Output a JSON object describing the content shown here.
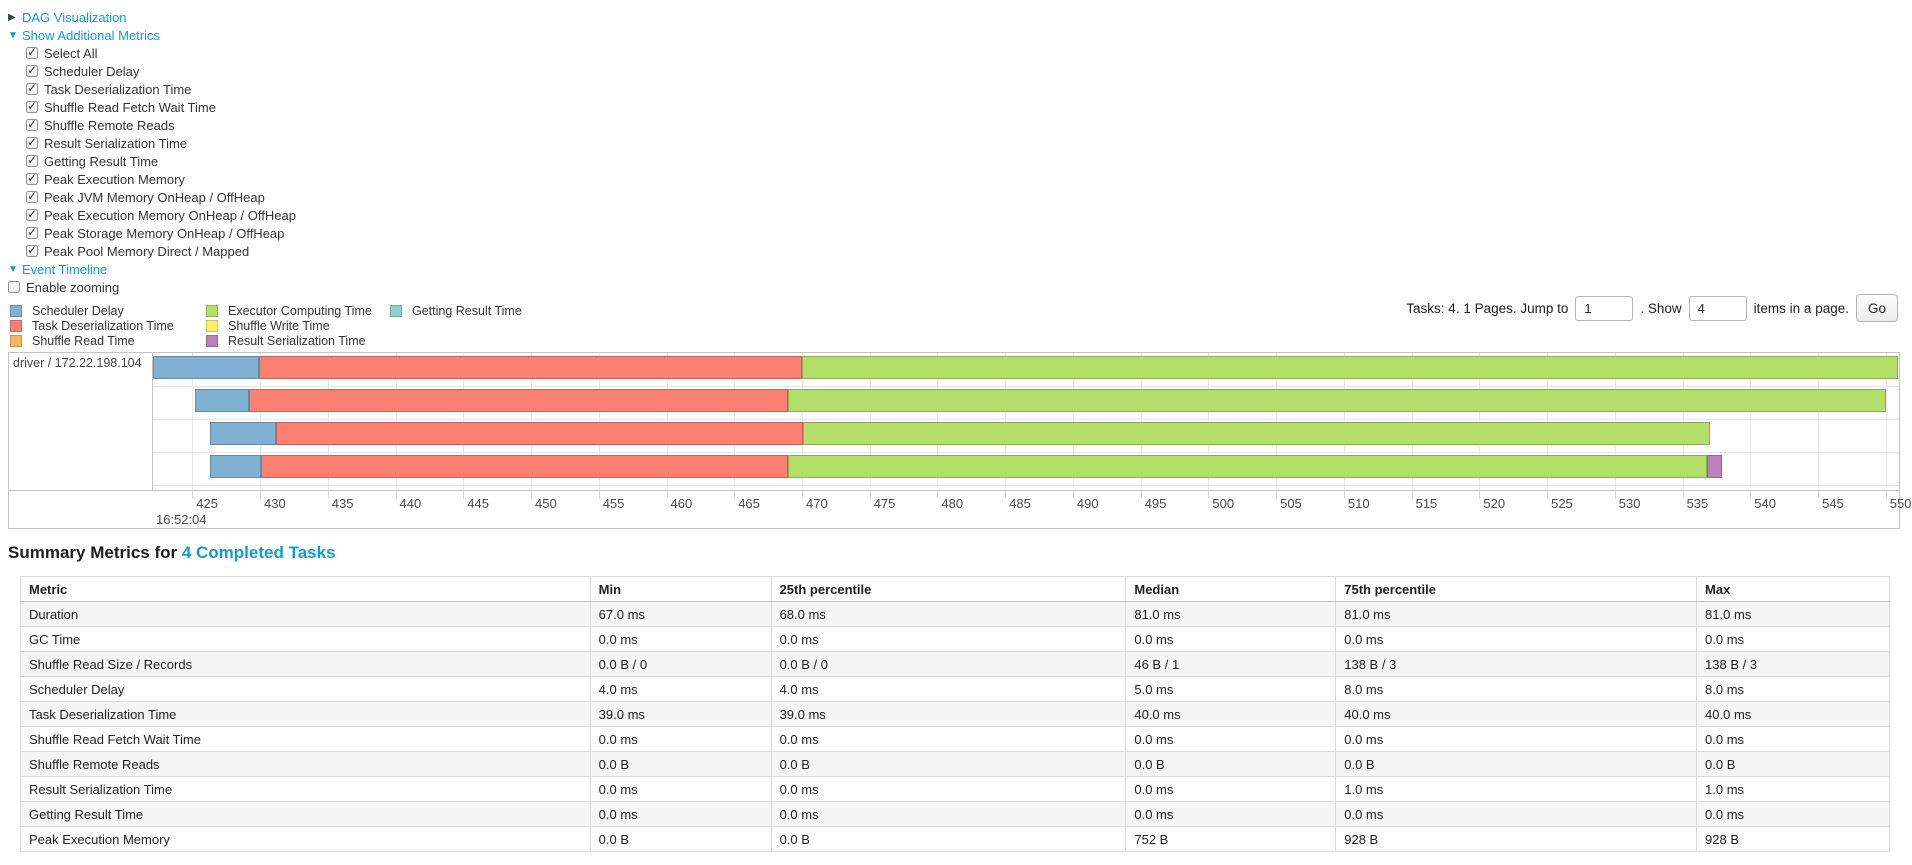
{
  "icons": {
    "arrow_closed": "▶",
    "arrow_open": "▼",
    "checkmark": "✓"
  },
  "accent_link_color": "#1899d2",
  "controls": {
    "dag": {
      "label": "DAG Visualization"
    },
    "metrics_toggle": {
      "label": "Show Additional Metrics"
    },
    "checkboxes": [
      {
        "label": "Select All",
        "checked": true
      },
      {
        "label": "Scheduler Delay",
        "checked": true
      },
      {
        "label": "Task Deserialization Time",
        "checked": true
      },
      {
        "label": "Shuffle Read Fetch Wait Time",
        "checked": true
      },
      {
        "label": "Shuffle Remote Reads",
        "checked": true
      },
      {
        "label": "Result Serialization Time",
        "checked": true
      },
      {
        "label": "Getting Result Time",
        "checked": true
      },
      {
        "label": "Peak Execution Memory",
        "checked": true
      },
      {
        "label": "Peak JVM Memory OnHeap / OffHeap",
        "checked": true
      },
      {
        "label": "Peak Execution Memory OnHeap / OffHeap",
        "checked": true
      },
      {
        "label": "Peak Storage Memory OnHeap / OffHeap",
        "checked": true
      },
      {
        "label": "Peak Pool Memory Direct / Mapped",
        "checked": true
      }
    ],
    "event_timeline": {
      "label": "Event Timeline"
    },
    "enable_zooming": {
      "label": "Enable zooming",
      "checked": false
    }
  },
  "legend": {
    "columns": [
      [
        {
          "label": "Scheduler Delay",
          "color": "#80B1D3"
        },
        {
          "label": "Task Deserialization Time",
          "color": "#FB8072"
        },
        {
          "label": "Shuffle Read Time",
          "color": "#FDB462"
        }
      ],
      [
        {
          "label": "Executor Computing Time",
          "color": "#B3DE69"
        },
        {
          "label": "Shuffle Write Time",
          "color": "#FFED6F"
        },
        {
          "label": "Result Serialization Time",
          "color": "#BC80BD"
        }
      ],
      [
        {
          "label": "Getting Result Time",
          "color": "#8DD3C7"
        }
      ]
    ]
  },
  "pagination": {
    "text_before": "Tasks: 4. 1 Pages. Jump to",
    "jump_value": "1",
    "text_mid": ". Show",
    "show_value": "4",
    "text_after": "items in a page.",
    "go_label": "Go"
  },
  "chart_data": {
    "type": "timeline",
    "group_label": "driver / 172.22.198.104",
    "x_domain": [
      422.1,
      550.9
    ],
    "x_tick_start": 425,
    "x_tick_end": 550,
    "x_tick_step": 5,
    "major_tick_label": "16:52:04",
    "major_tick_at_domain_start": true,
    "grid": true,
    "tasks": [
      {
        "segments": [
          {
            "name": "scheduler-delay",
            "color": "#80B1D3",
            "start": 422.1,
            "end": 429.9
          },
          {
            "name": "task-deserialization-time",
            "color": "#FB8072",
            "start": 429.9,
            "end": 470.0
          },
          {
            "name": "executor-computing-time",
            "color": "#B3DE69",
            "start": 470.0,
            "end": 550.9
          }
        ]
      },
      {
        "segments": [
          {
            "name": "scheduler-delay",
            "color": "#80B1D3",
            "start": 425.2,
            "end": 429.2
          },
          {
            "name": "task-deserialization-time",
            "color": "#FB8072",
            "start": 429.2,
            "end": 469.0
          },
          {
            "name": "executor-computing-time",
            "color": "#B3DE69",
            "start": 469.0,
            "end": 550.0
          }
        ]
      },
      {
        "segments": [
          {
            "name": "scheduler-delay",
            "color": "#80B1D3",
            "start": 426.3,
            "end": 431.2
          },
          {
            "name": "task-deserialization-time",
            "color": "#FB8072",
            "start": 431.2,
            "end": 470.1
          },
          {
            "name": "executor-computing-time",
            "color": "#B3DE69",
            "start": 470.1,
            "end": 537.0
          }
        ]
      },
      {
        "segments": [
          {
            "name": "scheduler-delay",
            "color": "#80B1D3",
            "start": 426.3,
            "end": 430.1
          },
          {
            "name": "task-deserialization-time",
            "color": "#FB8072",
            "start": 430.1,
            "end": 469.0
          },
          {
            "name": "executor-computing-time",
            "color": "#B3DE69",
            "start": 469.0,
            "end": 536.8
          },
          {
            "name": "result-serialization-time",
            "color": "#BC80BD",
            "start": 536.8,
            "end": 537.9
          }
        ]
      }
    ]
  },
  "summary": {
    "heading_prefix": "Summary Metrics for ",
    "heading_link": "4 Completed Tasks",
    "table": {
      "headers": [
        "Metric",
        "Min",
        "25th percentile",
        "Median",
        "75th percentile",
        "Max"
      ],
      "rows": [
        [
          "Duration",
          "67.0 ms",
          "68.0 ms",
          "81.0 ms",
          "81.0 ms",
          "81.0 ms"
        ],
        [
          "GC Time",
          "0.0 ms",
          "0.0 ms",
          "0.0 ms",
          "0.0 ms",
          "0.0 ms"
        ],
        [
          "Shuffle Read Size / Records",
          "0.0 B / 0",
          "0.0 B / 0",
          "46 B / 1",
          "138 B / 3",
          "138 B / 3"
        ],
        [
          "Scheduler Delay",
          "4.0 ms",
          "4.0 ms",
          "5.0 ms",
          "8.0 ms",
          "8.0 ms"
        ],
        [
          "Task Deserialization Time",
          "39.0 ms",
          "39.0 ms",
          "40.0 ms",
          "40.0 ms",
          "40.0 ms"
        ],
        [
          "Shuffle Read Fetch Wait Time",
          "0.0 ms",
          "0.0 ms",
          "0.0 ms",
          "0.0 ms",
          "0.0 ms"
        ],
        [
          "Shuffle Remote Reads",
          "0.0 B",
          "0.0 B",
          "0.0 B",
          "0.0 B",
          "0.0 B"
        ],
        [
          "Result Serialization Time",
          "0.0 ms",
          "0.0 ms",
          "0.0 ms",
          "1.0 ms",
          "1.0 ms"
        ],
        [
          "Getting Result Time",
          "0.0 ms",
          "0.0 ms",
          "0.0 ms",
          "0.0 ms",
          "0.0 ms"
        ],
        [
          "Peak Execution Memory",
          "0.0 B",
          "0.0 B",
          "752 B",
          "928 B",
          "928 B"
        ]
      ]
    }
  }
}
